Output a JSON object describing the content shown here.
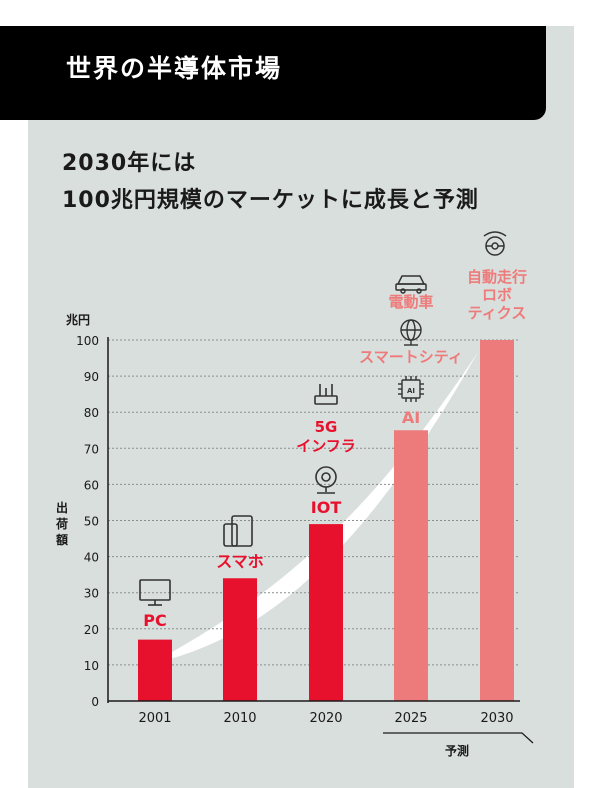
{
  "header": {
    "title": "世界の半導体市場",
    "subtitle_line1": "2030年には",
    "subtitle_line2": "100兆円規模のマーケットに成長と予測"
  },
  "colors": {
    "accent_red": "#e8112d",
    "forecast_pink": "#ee7b7b",
    "banner": "#000000",
    "panel": "#d9dfdc"
  },
  "chart_data": {
    "type": "bar",
    "y_unit": "兆円",
    "ylabel": "出荷額",
    "ylim": [
      0,
      100
    ],
    "yticks": [
      0,
      10,
      20,
      30,
      40,
      50,
      60,
      70,
      80,
      90,
      100
    ],
    "grid": true,
    "categories": [
      "2001",
      "2010",
      "2020",
      "2025",
      "2030"
    ],
    "values": [
      17,
      34,
      49,
      75,
      100
    ],
    "forecast": [
      false,
      false,
      false,
      true,
      true
    ],
    "forecast_label": "予測",
    "annotations": [
      {
        "category": "2001",
        "lines": [
          "PC"
        ],
        "icon": "monitor-icon"
      },
      {
        "category": "2010",
        "lines": [
          "スマホ"
        ],
        "icon": "smartphone-icon"
      },
      {
        "category": "2020",
        "lines": [
          "IOT"
        ],
        "icon": "webcam-icon"
      },
      {
        "category": "2020",
        "lines": [
          "5G",
          "インフラ"
        ],
        "icon": "router-icon"
      },
      {
        "category": "2025",
        "lines": [
          "AI"
        ],
        "icon": "ai-chip-icon"
      },
      {
        "category": "2025",
        "lines": [
          "スマートシティ"
        ],
        "icon": "globe-icon"
      },
      {
        "category": "2025",
        "lines": [
          "電動車"
        ],
        "icon": "car-icon"
      },
      {
        "category": "2030",
        "lines": [
          "自動走行",
          "ロボ",
          "ティクス"
        ],
        "icon": "steering-wheel-icon"
      }
    ]
  }
}
